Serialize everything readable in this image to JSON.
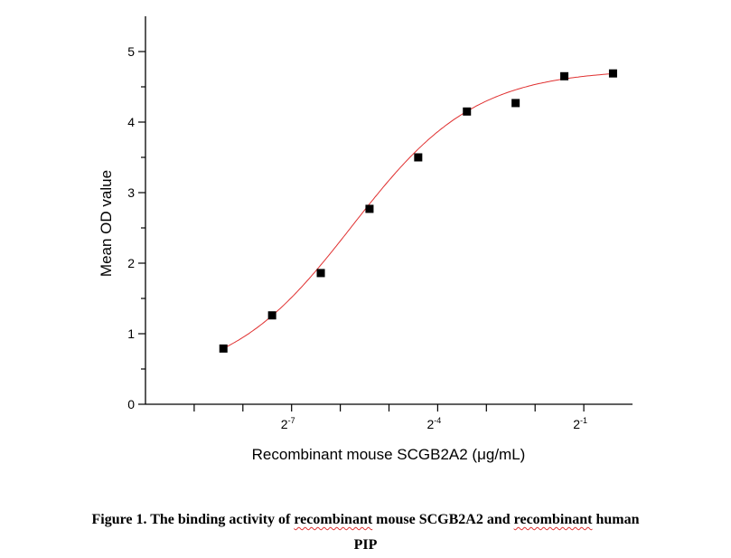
{
  "chart_data": {
    "type": "scatter",
    "title": "",
    "xlabel": "Recombinant mouse SCGB2A2 (μg/mL)",
    "ylabel": "Mean OD value",
    "xscale": "log2",
    "xlim_log2": [
      -10,
      0
    ],
    "ylim": [
      0,
      5.5
    ],
    "x_ticks_log2": [
      -9,
      -8,
      -7,
      -6,
      -5,
      -4,
      -3,
      -2,
      -1
    ],
    "x_tick_labels": [
      {
        "exp": -7,
        "base": "2",
        "sup": "-7"
      },
      {
        "exp": -4,
        "base": "2",
        "sup": "-4"
      },
      {
        "exp": -1,
        "base": "2",
        "sup": "-1"
      }
    ],
    "y_ticks": [
      "0",
      "1",
      "2",
      "3",
      "4",
      "5"
    ],
    "series": [
      {
        "name": "Mean OD",
        "x_log2": [
          -8.4,
          -7.4,
          -6.4,
          -5.4,
          -4.4,
          -3.4,
          -2.4,
          -1.4,
          -0.4
        ],
        "y": [
          0.79,
          1.26,
          1.86,
          2.77,
          3.5,
          4.15,
          4.27,
          4.65,
          4.69
        ],
        "marker_color": "#000000"
      }
    ],
    "fit": {
      "model": "4PL",
      "bottom": 0.3,
      "top": 4.75,
      "ec50_log2": -5.76,
      "hill": 1.14,
      "color": "#e03030"
    },
    "grid": false,
    "legend": "none"
  },
  "caption": {
    "prefix": "Figure 1. The binding activity of ",
    "w1": "recombinant",
    "mid": " mouse SCGB2A2 and ",
    "w2": "recombinant",
    "suffix": " human",
    "line2": "PIP"
  }
}
